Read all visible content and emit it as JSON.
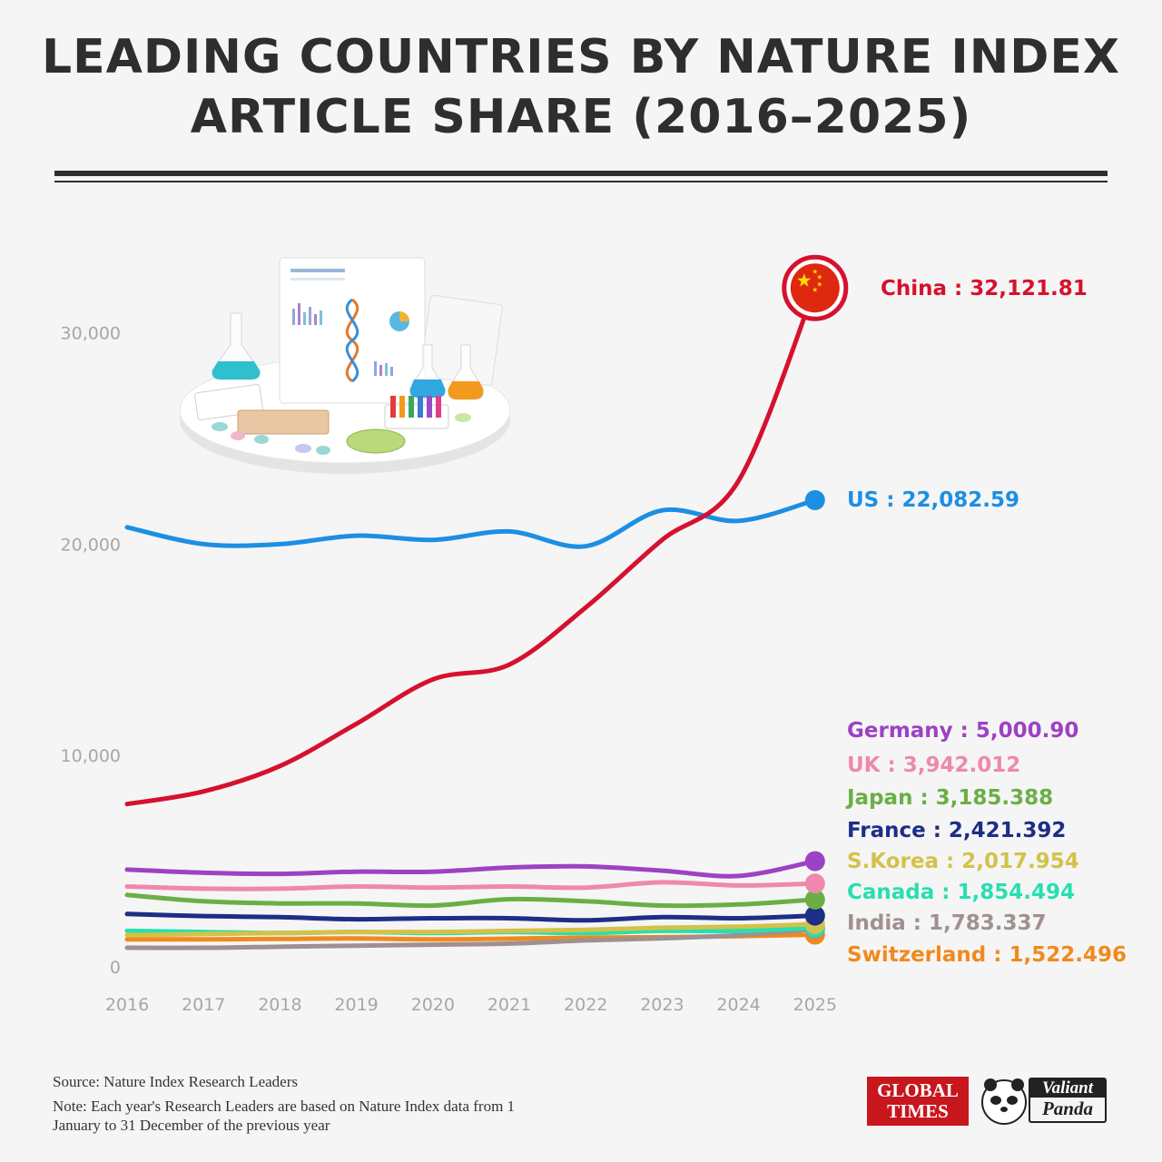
{
  "title": {
    "line1": "LEADING COUNTRIES BY NATURE INDEX",
    "line2": "ARTICLE SHARE (2016–2025)"
  },
  "chart_data": {
    "type": "line",
    "x": [
      2016,
      2017,
      2018,
      2019,
      2020,
      2021,
      2022,
      2023,
      2024,
      2025
    ],
    "x_tick_labels": [
      "2016",
      "2017",
      "2018",
      "2019",
      "2020",
      "2021",
      "2022",
      "2023",
      "2024",
      "2025"
    ],
    "y_ticks": [
      0,
      10000,
      20000,
      30000
    ],
    "y_tick_labels": [
      "0",
      "10,000",
      "20,000",
      "30,000"
    ],
    "ylim": [
      0,
      35000
    ],
    "grid": false,
    "legend": "end-of-line labels",
    "series": [
      {
        "name": "China",
        "value_label": "32,121.81",
        "color": "#d6112d",
        "values": [
          7700,
          8300,
          9500,
          11500,
          13600,
          14300,
          17000,
          20200,
          23000,
          32121.81
        ]
      },
      {
        "name": "US",
        "value_label": "22,082.59",
        "color": "#1c8fe3",
        "values": [
          20800,
          20000,
          20000,
          20400,
          20200,
          20600,
          19900,
          21600,
          21100,
          22082.59
        ]
      },
      {
        "name": "Germany",
        "value_label": "5,000.90",
        "color": "#9d42c4",
        "values": [
          4600,
          4450,
          4400,
          4500,
          4500,
          4700,
          4750,
          4550,
          4300,
          5000.9
        ]
      },
      {
        "name": "UK",
        "value_label": "3,942.012",
        "color": "#ee88ad",
        "values": [
          3800,
          3700,
          3700,
          3800,
          3750,
          3800,
          3750,
          4000,
          3850,
          3942.012
        ]
      },
      {
        "name": "Japan",
        "value_label": "3,185.388",
        "color": "#6aaf46",
        "values": [
          3400,
          3100,
          3000,
          3000,
          2900,
          3200,
          3100,
          2900,
          2950,
          3185.388
        ]
      },
      {
        "name": "France",
        "value_label": "2,421.392",
        "color": "#1c2e86",
        "values": [
          2500,
          2400,
          2350,
          2250,
          2300,
          2300,
          2200,
          2350,
          2300,
          2421.392
        ]
      },
      {
        "name": "S.Korea",
        "value_label": "2,017.954",
        "color": "#d3c24a",
        "values": [
          1500,
          1550,
          1600,
          1650,
          1650,
          1700,
          1750,
          1850,
          1900,
          2017.954
        ]
      },
      {
        "name": "Canada",
        "value_label": "1,854.494",
        "color": "#27dfb0",
        "values": [
          1700,
          1650,
          1600,
          1650,
          1600,
          1650,
          1600,
          1700,
          1700,
          1854.494
        ]
      },
      {
        "name": "India",
        "value_label": "1,783.337",
        "color": "#a09090",
        "values": [
          900,
          900,
          950,
          1000,
          1050,
          1100,
          1250,
          1350,
          1500,
          1783.337
        ]
      },
      {
        "name": "Switzerland",
        "value_label": "1,522.496",
        "color": "#f08a1d",
        "values": [
          1300,
          1300,
          1320,
          1340,
          1300,
          1330,
          1380,
          1400,
          1450,
          1522.496
        ]
      }
    ]
  },
  "footer": {
    "source": "Source: Nature Index Research Leaders",
    "note": "Note: Each year's Research Leaders are based on Nature Index data from 1 January to 31 December of the previous year"
  },
  "logos": {
    "global_times_line1": "GLOBAL",
    "global_times_line2": "TIMES",
    "valiant_panda_line1": "Valiant",
    "valiant_panda_line2": "Panda"
  },
  "illustration_icon": "lab-science-illustration",
  "flag_icon": "china-flag-icon"
}
